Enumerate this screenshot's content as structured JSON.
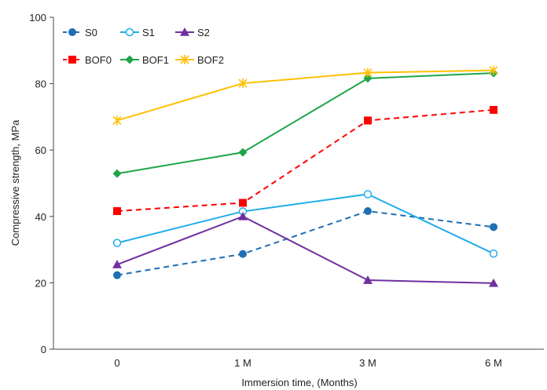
{
  "chart_data": {
    "type": "line",
    "title": "",
    "xlabel": "Immersion time, (Months)",
    "ylabel": "Compressive strength, MPa",
    "categories": [
      "0",
      "1 M",
      "3 M",
      "6 M"
    ],
    "ylim": [
      0,
      100
    ],
    "yticks": [
      "0",
      "20",
      "40",
      "60",
      "80",
      "100"
    ],
    "grid": false,
    "legend_position": "top-left",
    "series": [
      {
        "name": "S0",
        "values": [
          22.3,
          28.7,
          41.6,
          36.8
        ],
        "color": "#1F6FB4",
        "dash": true,
        "marker": "circle-filled"
      },
      {
        "name": "S1",
        "values": [
          32.0,
          41.5,
          46.7,
          28.8
        ],
        "color": "#22AEE8",
        "dash": false,
        "marker": "circle-open"
      },
      {
        "name": "S2",
        "values": [
          25.5,
          40.0,
          20.8,
          19.9
        ],
        "color": "#7030A0",
        "dash": false,
        "marker": "triangle"
      },
      {
        "name": "BOF0",
        "values": [
          41.6,
          44.1,
          68.9,
          72.1
        ],
        "color": "#FF0000",
        "dash": true,
        "marker": "square"
      },
      {
        "name": "BOF1",
        "values": [
          52.9,
          59.3,
          81.6,
          83.2
        ],
        "color": "#1FA64A",
        "dash": false,
        "marker": "diamond"
      },
      {
        "name": "BOF2",
        "values": [
          68.9,
          80.1,
          83.3,
          84.0
        ],
        "color": "#FFC000",
        "dash": false,
        "marker": "star"
      }
    ]
  }
}
